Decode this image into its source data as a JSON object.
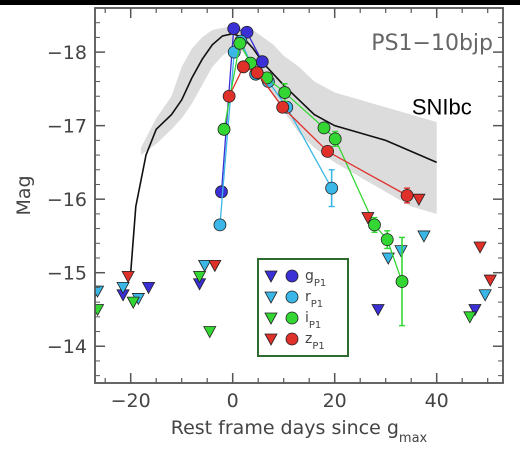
{
  "chart_data": {
    "type": "scatter",
    "title": "PS1−10bjp",
    "annotation": "SNIbc",
    "xlabel": "Rest frame days since g",
    "xlabel_sub": "max",
    "ylabel": "Mag",
    "xlim": [
      -27,
      53
    ],
    "ylim": [
      -13.5,
      -18.6
    ],
    "y_inverted": true,
    "xticks": [
      -20,
      0,
      20,
      40
    ],
    "xtick_labels": [
      "−20",
      "0",
      "20",
      "40"
    ],
    "yticks": [
      -14,
      -15,
      -16,
      -17,
      -18
    ],
    "ytick_labels": [
      "−14",
      "−15",
      "−16",
      "−17",
      "−18"
    ],
    "legend_position": "lower-center",
    "template": {
      "name": "SNIbc",
      "x": [
        -20,
        -19,
        -17,
        -15,
        -12,
        -10,
        -8,
        -6,
        -4,
        -2,
        0,
        2,
        4,
        6,
        8,
        10,
        13,
        16,
        20,
        25,
        30,
        35,
        40
      ],
      "y": [
        -15.0,
        -15.9,
        -16.6,
        -16.95,
        -17.15,
        -17.35,
        -17.65,
        -17.9,
        -18.1,
        -18.22,
        -18.25,
        -18.2,
        -18.05,
        -17.85,
        -17.7,
        -17.55,
        -17.35,
        -17.15,
        -17.0,
        -16.9,
        -16.8,
        -16.65,
        -16.5
      ],
      "band_x": [
        -18,
        -15,
        -12,
        -10,
        -8,
        -6,
        -4,
        -2,
        0,
        2,
        4,
        6,
        8,
        10,
        13,
        16,
        20,
        25,
        30,
        35,
        40
      ],
      "band_upper": [
        -16.7,
        -17.1,
        -17.4,
        -17.8,
        -18.05,
        -18.2,
        -18.3,
        -18.33,
        -18.35,
        -18.33,
        -18.3,
        -18.2,
        -18.1,
        -17.95,
        -17.8,
        -17.6,
        -17.45,
        -17.35,
        -17.25,
        -17.15,
        -17.05
      ],
      "band_lower": [
        -16.6,
        -16.75,
        -16.95,
        -17.1,
        -17.3,
        -17.55,
        -17.8,
        -17.95,
        -18.05,
        -18.0,
        -17.8,
        -17.6,
        -17.4,
        -17.2,
        -16.9,
        -16.7,
        -16.5,
        -16.3,
        -16.1,
        -15.9,
        -15.8
      ]
    },
    "series": [
      {
        "name": "g",
        "name_sub": "P1",
        "color": "#3b2fd6",
        "line": true,
        "detections": {
          "x": [
            -2.2,
            0.2,
            2.8,
            5.8
          ],
          "y": [
            -16.1,
            -18.32,
            -18.27,
            -17.87
          ],
          "err": [
            0,
            0,
            0,
            0
          ]
        },
        "upper_limits": {
          "x": [
            -27,
            -21.5,
            -16.5,
            -6.5,
            28.5,
            47.5
          ],
          "y": [
            -14.75,
            -14.7,
            -14.8,
            -14.85,
            -14.5,
            -14.5
          ]
        }
      },
      {
        "name": "r",
        "name_sub": "P1",
        "color": "#3ab7e6",
        "line": true,
        "detections": {
          "x": [
            -2.5,
            0.3,
            1.6,
            4.5,
            7.0,
            10.6,
            19.4
          ],
          "y": [
            -15.65,
            -18.0,
            -18.15,
            -17.7,
            -17.6,
            -17.25,
            -16.15
          ],
          "err": [
            0.05,
            0,
            0,
            0,
            0,
            0,
            0.25
          ]
        },
        "upper_limits": {
          "x": [
            -26.5,
            -21.5,
            -18.5,
            -5.5,
            30.5,
            33.0,
            37.5,
            49.5
          ],
          "y": [
            -14.75,
            -14.8,
            -14.65,
            -15.1,
            -15.2,
            -15.3,
            -15.5,
            -14.7
          ]
        }
      },
      {
        "name": "i",
        "name_sub": "P1",
        "color": "#33d633",
        "line": true,
        "detections": {
          "x": [
            -1.7,
            1.4,
            3.5,
            6.7,
            10.2,
            17.9,
            20.1,
            27.8,
            30.3,
            33.2
          ],
          "y": [
            -16.95,
            -18.12,
            -17.85,
            -17.65,
            -17.45,
            -16.97,
            -16.82,
            -15.65,
            -15.45,
            -14.88
          ],
          "err": [
            0,
            0,
            0,
            0,
            0.12,
            0,
            0.1,
            0.1,
            0.12,
            0.6
          ]
        },
        "upper_limits": {
          "x": [
            -26.5,
            -19.5,
            -6.5,
            -4.5,
            46.5
          ],
          "y": [
            -14.5,
            -14.6,
            -14.95,
            -14.2,
            -14.4
          ]
        }
      },
      {
        "name": "z",
        "name_sub": "P1",
        "color": "#e0302a",
        "line": true,
        "detections": {
          "x": [
            -0.7,
            2.1,
            4.8,
            9.8,
            18.6,
            34.2
          ],
          "y": [
            -17.4,
            -17.8,
            -17.72,
            -17.25,
            -16.65,
            -16.05
          ],
          "err": [
            0,
            0,
            0,
            0,
            0,
            0.1
          ]
        },
        "upper_limits": {
          "x": [
            -20.5,
            -3.5,
            26.5,
            36.5,
            48.5,
            50.5
          ],
          "y": [
            -14.95,
            -15.1,
            -15.75,
            -16.0,
            -15.35,
            -14.9
          ]
        }
      }
    ]
  }
}
